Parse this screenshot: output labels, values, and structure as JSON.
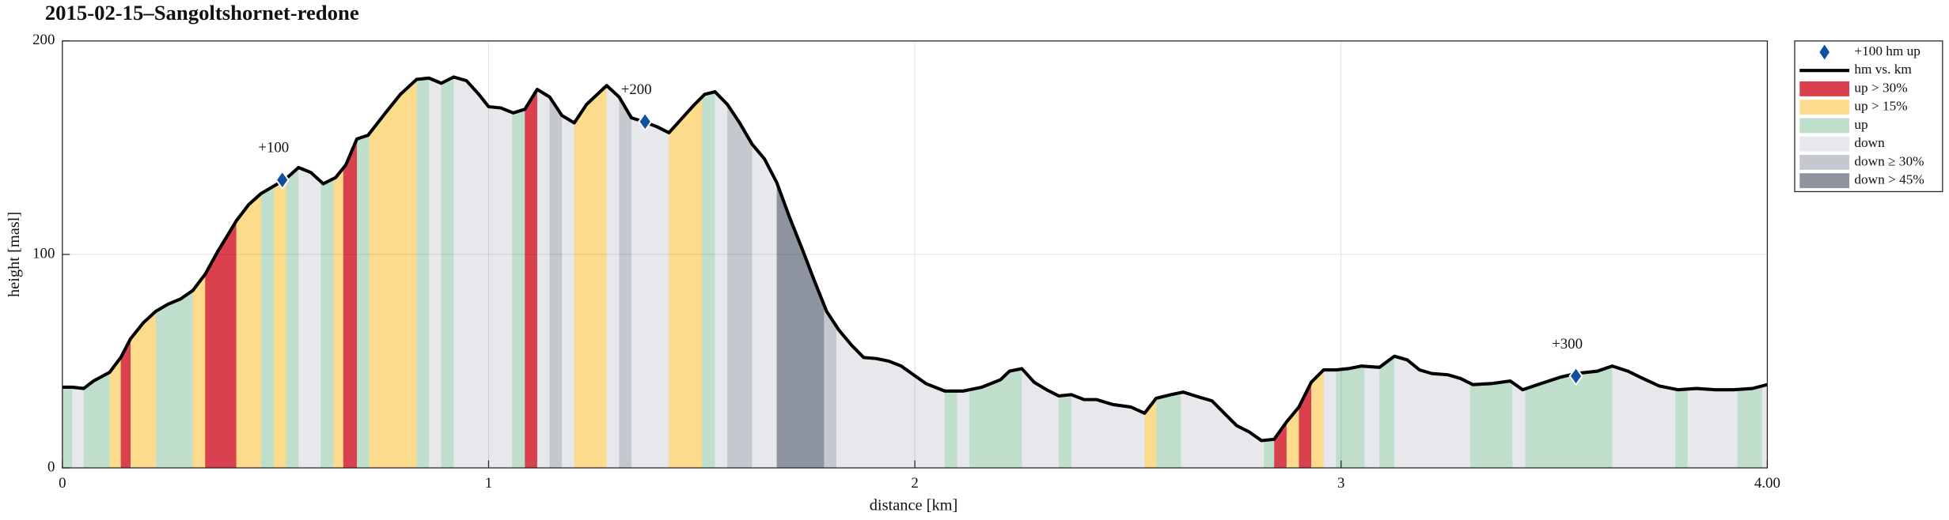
{
  "chart_data": {
    "type": "area",
    "title": "2015-02-15–Sangoltshornet-redone",
    "xlabel": "distance [km]",
    "ylabel": "height [masl]",
    "xlim": [
      0,
      4
    ],
    "ylim": [
      0,
      200
    ],
    "xticks": [
      0,
      1,
      2,
      3,
      {
        "value": 4,
        "label": "4.00"
      }
    ],
    "yticks": [
      0,
      100,
      200
    ],
    "grid": true,
    "legend_position": "outside right",
    "series": [
      {
        "name": "+100 hm up",
        "color": "#1050a0",
        "kind": "marker",
        "x": [
          0.516,
          1.367,
          3.551
        ],
        "values": [
          134.9,
          162.2,
          43.0
        ],
        "point_labels": [
          "+100",
          "+200",
          "+300"
        ]
      },
      {
        "name": "hm vs. km",
        "color": "#000000",
        "kind": "line",
        "x": [
          0,
          0.023,
          0.05,
          0.073,
          0.111,
          0.137,
          0.16,
          0.19,
          0.219,
          0.248,
          0.277,
          0.306,
          0.335,
          0.364,
          0.408,
          0.437,
          0.466,
          0.496,
          0.525,
          0.554,
          0.583,
          0.612,
          0.641,
          0.665,
          0.691,
          0.717,
          0.758,
          0.793,
          0.831,
          0.86,
          0.889,
          0.918,
          0.948,
          0.977,
          1.0,
          1.029,
          1.058,
          1.085,
          1.114,
          1.143,
          1.172,
          1.201,
          1.23,
          1.277,
          1.306,
          1.335,
          1.364,
          1.394,
          1.423,
          1.452,
          1.481,
          1.507,
          1.531,
          1.56,
          1.589,
          1.618,
          1.647,
          1.676,
          1.706,
          1.735,
          1.764,
          1.793,
          1.822,
          1.851,
          1.88,
          1.91,
          1.939,
          1.968,
          1.997,
          2.026,
          2.07,
          2.114,
          2.157,
          2.201,
          2.222,
          2.251,
          2.28,
          2.309,
          2.338,
          2.367,
          2.397,
          2.426,
          2.464,
          2.507,
          2.539,
          2.566,
          2.601,
          2.63,
          2.668,
          2.697,
          2.726,
          2.755,
          2.784,
          2.813,
          2.843,
          2.872,
          2.901,
          2.93,
          2.959,
          2.988,
          3.017,
          3.047,
          3.09,
          3.125,
          3.155,
          3.184,
          3.213,
          3.251,
          3.28,
          3.309,
          3.353,
          3.397,
          3.426,
          3.469,
          3.513,
          3.551,
          3.601,
          3.636,
          3.673,
          3.708,
          3.746,
          3.79,
          3.834,
          3.878,
          3.921,
          3.965,
          4.0
        ],
        "values": [
          37.8,
          37.8,
          37.2,
          40.7,
          44.8,
          51.7,
          60.5,
          68.0,
          73.3,
          76.7,
          79.1,
          83.1,
          90.7,
          101.2,
          115.7,
          123.3,
          128.5,
          132.0,
          135.5,
          140.7,
          138.4,
          133.1,
          136.0,
          141.9,
          154.1,
          155.8,
          166.3,
          175.0,
          182.0,
          182.6,
          180.2,
          183.1,
          181.4,
          175.0,
          169.2,
          168.6,
          166.3,
          168.0,
          177.3,
          173.8,
          165.1,
          161.6,
          170.3,
          179.1,
          173.8,
          164.0,
          162.2,
          159.9,
          157.0,
          163.4,
          169.8,
          175.0,
          176.2,
          170.3,
          161.6,
          151.7,
          144.8,
          133.7,
          117.4,
          102.9,
          87.8,
          73.3,
          64.5,
          57.6,
          51.7,
          51.2,
          50.0,
          47.7,
          43.6,
          39.5,
          36.0,
          36.0,
          37.8,
          41.3,
          45.3,
          46.5,
          40.1,
          36.6,
          33.7,
          34.3,
          32.0,
          32.0,
          29.7,
          28.5,
          25.6,
          32.6,
          34.3,
          35.5,
          33.1,
          31.4,
          25.6,
          19.8,
          16.9,
          12.8,
          13.4,
          21.5,
          28.5,
          40.1,
          45.9,
          45.9,
          46.5,
          47.7,
          47.1,
          52.3,
          50.6,
          45.9,
          44.2,
          43.6,
          41.9,
          39.0,
          39.5,
          40.7,
          36.6,
          39.5,
          42.4,
          44.2,
          45.3,
          47.7,
          45.3,
          41.9,
          38.4,
          36.6,
          37.2,
          36.6,
          36.6,
          37.2,
          39.0
        ]
      },
      {
        "name": "up > 30%",
        "color": "#d9414f",
        "kind": "fill"
      },
      {
        "name": "up > 15%",
        "color": "#fddb8c",
        "kind": "fill"
      },
      {
        "name": "up",
        "color": "#bfdfcc",
        "kind": "fill"
      },
      {
        "name": "down",
        "color": "#e6e8eb",
        "kind": "fill"
      },
      {
        "name": "down ≥ 30%",
        "color": "#c5c8cf",
        "kind": "fill"
      },
      {
        "name": "down > 45%",
        "color": "#8e949f",
        "kind": "fill"
      }
    ],
    "segment_edges": [
      0,
      0.023,
      0.05,
      0.111,
      0.137,
      0.16,
      0.219,
      0.306,
      0.335,
      0.408,
      0.466,
      0.496,
      0.525,
      0.554,
      0.606,
      0.636,
      0.659,
      0.691,
      0.72,
      0.831,
      0.86,
      0.889,
      0.918,
      1.055,
      1.085,
      1.114,
      1.143,
      1.172,
      1.201,
      1.277,
      1.306,
      1.335,
      1.423,
      1.501,
      1.531,
      1.56,
      1.618,
      1.676,
      1.787,
      1.816,
      2.07,
      2.099,
      2.128,
      2.251,
      2.338,
      2.367,
      2.539,
      2.566,
      2.624,
      2.819,
      2.843,
      2.872,
      2.901,
      2.93,
      2.959,
      2.988,
      3.055,
      3.09,
      3.125,
      3.303,
      3.402,
      3.432,
      3.636,
      3.784,
      3.813,
      3.93,
      3.988,
      4.0
    ],
    "segment_types": [
      4,
      5,
      4,
      3,
      2,
      3,
      4,
      3,
      2,
      3,
      4,
      3,
      4,
      5,
      4,
      3,
      2,
      4,
      3,
      4,
      5,
      4,
      5,
      4,
      2,
      5,
      6,
      5,
      3,
      5,
      6,
      5,
      3,
      4,
      5,
      6,
      5,
      7,
      6,
      5,
      4,
      5,
      4,
      5,
      4,
      5,
      3,
      4,
      5,
      4,
      2,
      3,
      2,
      3,
      5,
      4,
      5,
      4,
      5,
      4,
      5,
      4,
      5,
      4,
      5,
      4,
      5
    ]
  }
}
